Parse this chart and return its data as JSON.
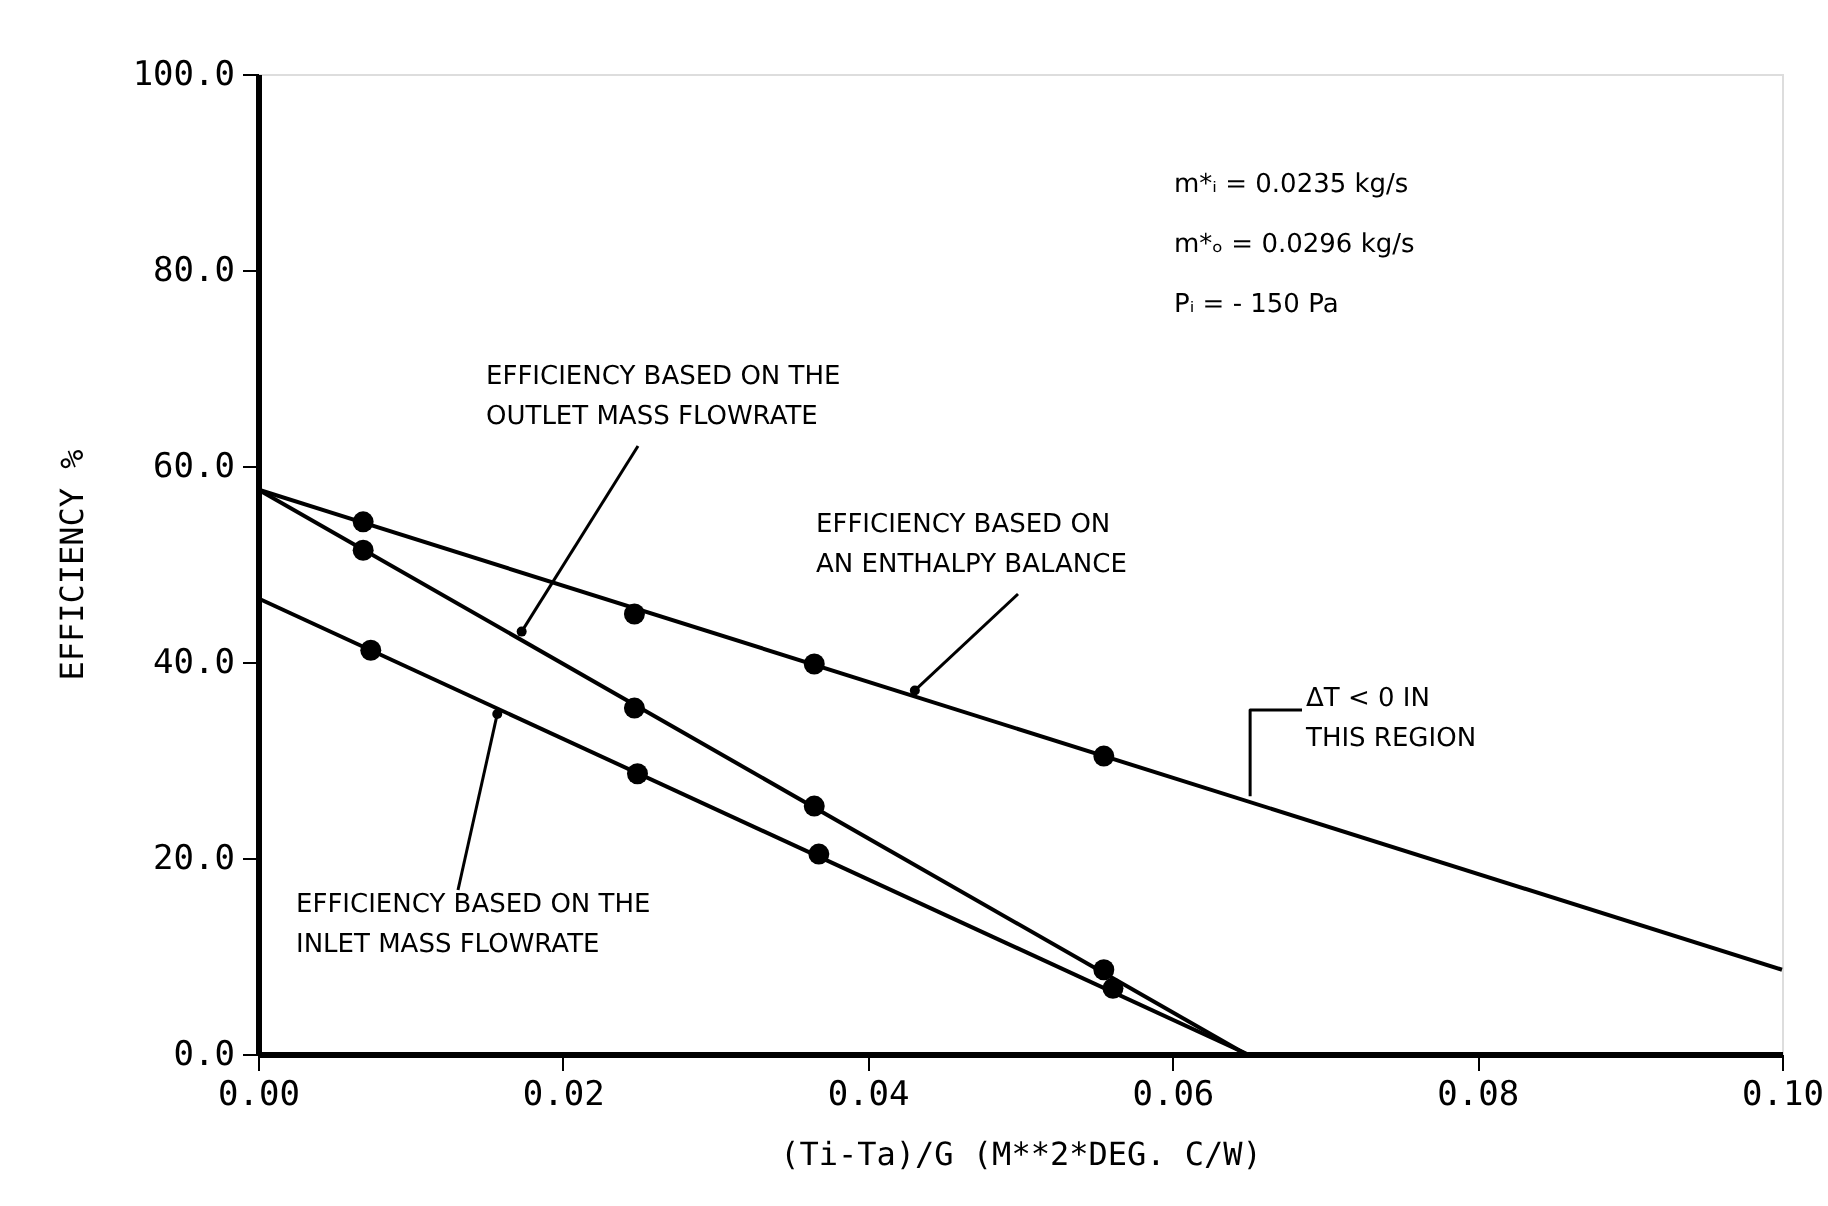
{
  "chart_data": {
    "type": "line",
    "xlabel": "(Ti-Ta)/G    (M**2*DEG. C/W)",
    "ylabel": "EFFICIENCY    %",
    "xlim": [
      0,
      0.1
    ],
    "ylim": [
      0,
      100
    ],
    "xticks": [
      {
        "value": 0,
        "label": "0.00"
      },
      {
        "value": 0.02,
        "label": "0.02"
      },
      {
        "value": 0.04,
        "label": "0.04"
      },
      {
        "value": 0.06,
        "label": "0.06"
      },
      {
        "value": 0.08,
        "label": "0.08"
      },
      {
        "value": 0.1,
        "label": "0.10"
      }
    ],
    "yticks": [
      {
        "value": 0,
        "label": "0.0"
      },
      {
        "value": 20,
        "label": "20.0"
      },
      {
        "value": 40,
        "label": "40.0"
      },
      {
        "value": 60,
        "label": "60.0"
      },
      {
        "value": 80,
        "label": "80.0"
      },
      {
        "value": 100,
        "label": "100.0"
      }
    ],
    "grid": false,
    "series": [
      {
        "type": "line",
        "marker": "none",
        "color": "#000000",
        "x": [
          0,
          0.1
        ],
        "values": [
          57.6,
          8.6
        ]
      },
      {
        "type": "line",
        "marker": "none",
        "color": "#000000",
        "x": [
          0,
          0.0648
        ],
        "values": [
          57.6,
          0
        ]
      },
      {
        "type": "line",
        "marker": "none",
        "color": "#000000",
        "x": [
          0,
          0.0649
        ],
        "values": [
          46.5,
          0
        ]
      },
      {
        "type": "scatter",
        "marker": "circle",
        "color": "#000000",
        "x": [
          0.0069,
          0.0247,
          0.0365,
          0.0555
        ],
        "values": [
          54.3,
          44.9,
          39.8,
          30.4
        ]
      },
      {
        "type": "scatter",
        "marker": "circle",
        "color": "#000000",
        "x": [
          0.0069,
          0.0247,
          0.0365,
          0.0555
        ],
        "values": [
          51.4,
          35.3,
          25.3,
          8.6
        ]
      },
      {
        "type": "scatter",
        "marker": "circle",
        "color": "#000000",
        "x": [
          0.0074,
          0.0249,
          0.0368,
          0.0561
        ],
        "values": [
          41.2,
          28.6,
          20.4,
          6.7
        ]
      }
    ],
    "annotations": [
      "m*ᵢ  =  0.0235  kg/s",
      "m*ₒ  =  0.0296  kg/s",
      "Pᵢ  =  - 150  Pa",
      {
        "text": "EFFICIENCY BASED ON THE\nOUTLET MASS FLOWRATE",
        "x": 0.0173,
        "y": 43.1
      },
      {
        "text": "EFFICIENCY BASED ON\nAN ENTHALPY BALANCE",
        "x": 0.0431,
        "y": 37.1
      },
      {
        "text": "EFFICIENCY BASED ON THE\nINLET MASS FLOWRATE",
        "x": 0.0157,
        "y": 34.7
      },
      {
        "text": "ΔT  < 0  IN\nTHIS REGION",
        "x": 0.0651,
        "y": 26.3
      }
    ]
  }
}
